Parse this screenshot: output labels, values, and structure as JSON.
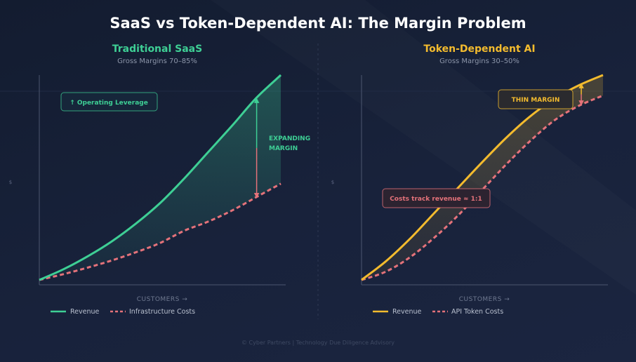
{
  "title": "SaaS vs Token-Dependent AI: The Margin Problem",
  "footer": "© Cyber Partners | Technology Due Diligence Advisory",
  "colors": {
    "saas_green": "#3ecf95",
    "ai_yellow": "#f3bb2e",
    "cost_red": "#e4727a",
    "axis": "#4c566f",
    "divider": "#2e3852"
  },
  "chart_data": [
    {
      "type": "line",
      "title": "Traditional SaaS",
      "subtitle": "Gross Margins 70–85%",
      "xlabel": "CUSTOMERS →",
      "ylabel": "$",
      "xlim": [
        0,
        100
      ],
      "ylim": [
        0,
        100
      ],
      "grid": false,
      "series": [
        {
          "name": "Revenue",
          "style": "solid",
          "x": [
            0,
            10,
            20,
            30,
            40,
            50,
            60,
            70,
            80,
            90,
            100
          ],
          "values": [
            0,
            5.2,
            11.5,
            18.8,
            27.5,
            37.5,
            49.5,
            62.5,
            75.5,
            89,
            100
          ]
        },
        {
          "name": "Infrastructure Costs",
          "style": "dashed",
          "x": [
            0,
            10,
            20,
            30,
            40,
            50,
            60,
            70,
            80,
            90,
            100
          ],
          "values": [
            0,
            2.8,
            6,
            9.5,
            13.5,
            18,
            24,
            28.5,
            34,
            40.5,
            47
          ]
        }
      ],
      "annotations": [
        {
          "text": "↑ Operating Leverage",
          "kind": "box"
        },
        {
          "text_lines": [
            "EXPANDING",
            "MARGIN"
          ],
          "kind": "arrow_label",
          "x": 90
        }
      ]
    },
    {
      "type": "line",
      "title": "Token-Dependent AI",
      "subtitle": "Gross Margins 30–50%",
      "xlabel": "CUSTOMERS →",
      "ylabel": "$",
      "xlim": [
        0,
        100
      ],
      "ylim": [
        0,
        100
      ],
      "grid": false,
      "series": [
        {
          "name": "Revenue",
          "style": "solid",
          "x": [
            0,
            10,
            20,
            30,
            40,
            50,
            60,
            70,
            80,
            90,
            100
          ],
          "values": [
            0,
            9,
            20,
            32.5,
            45,
            57.5,
            69.5,
            80,
            88.5,
            95,
            100
          ]
        },
        {
          "name": "API Token Costs",
          "style": "dashed",
          "x": [
            0,
            10,
            20,
            30,
            40,
            50,
            60,
            70,
            80,
            90,
            100
          ],
          "values": [
            0,
            4,
            11,
            20.5,
            31.5,
            44,
            56.5,
            68,
            78,
            85,
            90
          ]
        }
      ],
      "annotations": [
        {
          "text": "THIN MARGIN",
          "kind": "box"
        },
        {
          "text": "Costs track revenue ≈ 1:1",
          "kind": "box"
        }
      ]
    }
  ]
}
